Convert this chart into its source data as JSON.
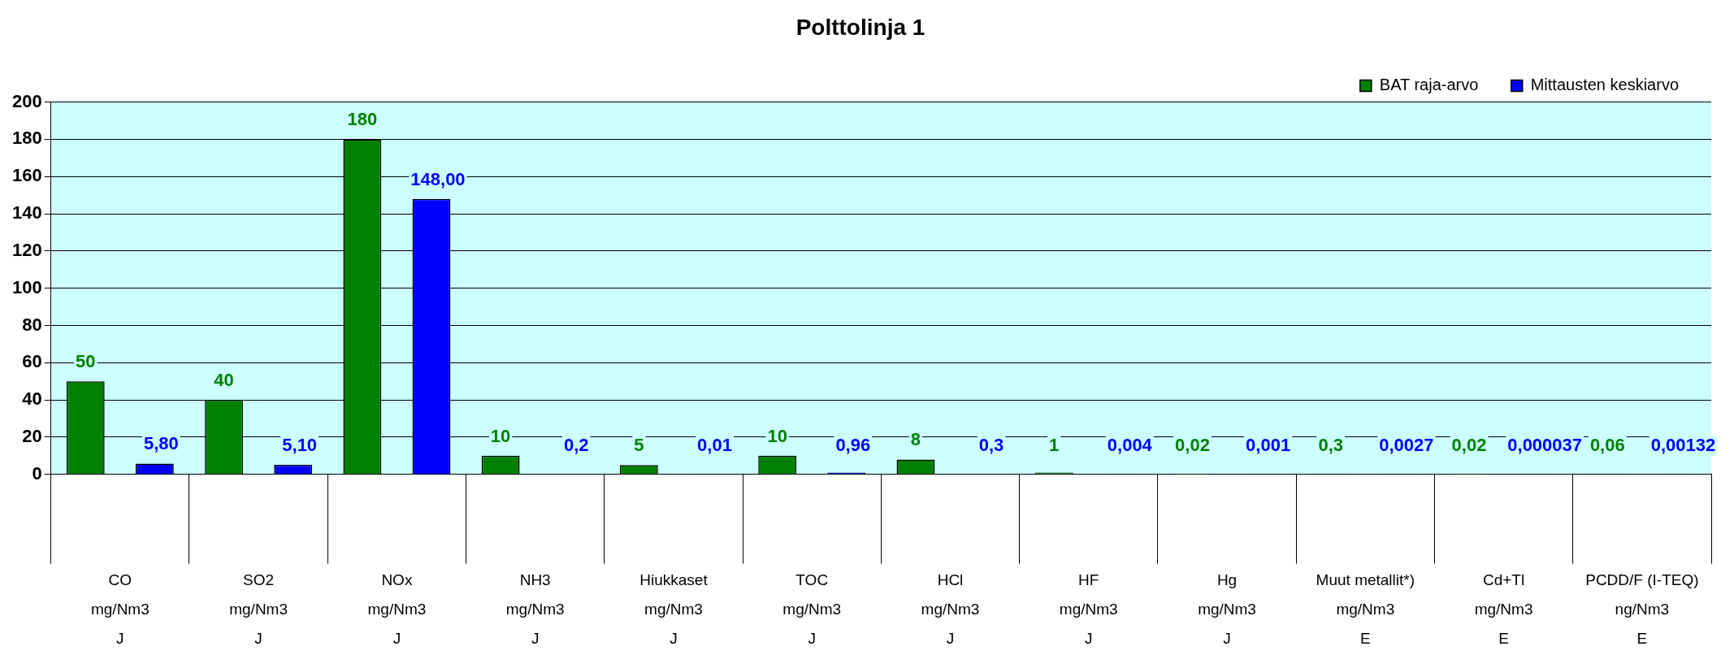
{
  "chart_data": {
    "type": "bar",
    "title": "Polttolinja 1",
    "categories": [
      "CO\nmg/Nm3\nJ",
      "SO2\nmg/Nm3\nJ",
      "NOx\nmg/Nm3\nJ",
      "NH3\nmg/Nm3\nJ",
      "Hiukkaset\nmg/Nm3\nJ",
      "TOC\nmg/Nm3\nJ",
      "HCl\nmg/Nm3\nJ",
      "HF\nmg/Nm3\nJ",
      "Hg\nmg/Nm3\nJ",
      "Muut metallit*)\nmg/Nm3\nE",
      "Cd+Tl\nmg/Nm3\nE",
      "PCDD/F (I-TEQ)\nng/Nm3\nE"
    ],
    "series": [
      {
        "name": "BAT raja-arvo",
        "color": "#008000",
        "values": [
          50,
          40,
          180,
          10,
          5,
          10,
          8,
          1,
          0.02,
          0.3,
          0.02,
          0.06
        ],
        "value_labels": [
          "50",
          "40",
          "180",
          "10",
          "5",
          "10",
          "8",
          "1",
          "0,02",
          "0,3",
          "0,02",
          "0,06"
        ]
      },
      {
        "name": "Mittausten keskiarvo",
        "color": "#0000ff",
        "values": [
          5.8,
          5.1,
          148,
          0.2,
          0.01,
          0.96,
          0.3,
          0.004,
          0.001,
          0.0027,
          3.7e-05,
          0.00132
        ],
        "value_labels": [
          "5,80",
          "5,10",
          "148,00",
          "0,2",
          "0,01",
          "0,96",
          "0,3",
          "0,004",
          "0,001",
          "0,0027",
          "0,000037",
          "0,00132"
        ]
      }
    ],
    "ylim": [
      0,
      200
    ],
    "yticks": [
      0,
      20,
      40,
      60,
      80,
      100,
      120,
      140,
      160,
      180,
      200
    ],
    "grid": "y",
    "legend": "top right"
  }
}
